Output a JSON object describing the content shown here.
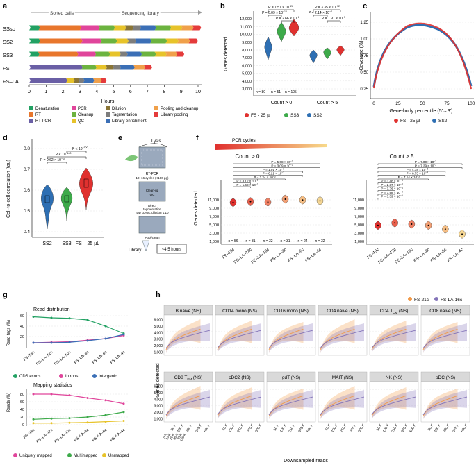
{
  "colors": {
    "denaturation": "#22a163",
    "rt": "#e8762c",
    "rtpcr": "#6a5fa5",
    "pcr": "#e0459b",
    "cleanup": "#6cb33f",
    "qc": "#e7c32a",
    "dilution": "#8a7536",
    "tagmentation": "#7d7d7d",
    "library_enrichment": "#3b6fb6",
    "pooling_cleanup": "#f0a04a",
    "library_pooling": "#e43b3b",
    "fs25": "#e0312f",
    "ss3": "#3daa4a",
    "ss2": "#2e6fb3",
    "fs21c": "#f29a48",
    "fslа16c": "#8474b9"
  },
  "panels": {
    "a": "a",
    "b": "b",
    "c": "c",
    "d": "d",
    "e": "e",
    "f": "f",
    "g": "g",
    "h": "h"
  },
  "panel_a": {
    "left_label": "Sorted cells",
    "right_label": "Sequencing library",
    "rows": [
      "SSsc",
      "SS2",
      "SS3",
      "FS",
      "FS–LA"
    ],
    "ticks": [
      "0",
      "1",
      "2",
      "3",
      "4",
      "5",
      "6",
      "7",
      "8",
      "9",
      "10"
    ],
    "xlabel": "Hours",
    "legend": [
      "Denaturation",
      "RT",
      "RT-PCR",
      "PCR",
      "Cleanup",
      "QC",
      "Dilution",
      "Tagmentation",
      "Library enrichment",
      "Pooling and cleanup",
      "Library pooling"
    ]
  },
  "panel_b": {
    "ylabel": "Genes detected",
    "yticks": [
      "3,000",
      "4,000",
      "5,000",
      "6,000",
      "7,000",
      "8,000",
      "9,000",
      "10,000",
      "11,000",
      "12,000"
    ],
    "groups": [
      "Count > 0",
      "Count > 5"
    ],
    "n_labels": [
      "n = 80",
      "n = 51",
      "n = 105"
    ],
    "pvals_left": [
      "P = 7.57 × 10",
      "P = 6.09 × 10",
      "P = 2.66 × 10"
    ],
    "pvals_right": [
      "P = 3.35 × 10",
      "P = 2.14 × 10",
      "P = 1.91 × 10"
    ],
    "legend": [
      "FS - 25 µl",
      "SS3",
      "SS2"
    ]
  },
  "panel_c": {
    "ylabel": "Coverage (%)",
    "yticks": [
      "0.25",
      "0.50",
      "0.75",
      "1.00",
      "1.25"
    ],
    "xticks": [
      "0",
      "25",
      "50",
      "75",
      "100"
    ],
    "xlabel": "Gene-body percentile (5′→3′)",
    "legend": [
      "FS - 25 µl",
      "SS2"
    ]
  },
  "panel_d": {
    "ylabel": "Cell-to-cell correlation (tau)",
    "yticks": [
      "0.4",
      "0.5",
      "0.6",
      "0.7",
      "0.8"
    ],
    "xticks": [
      "SS2",
      "SS3",
      "FS – 25 µL"
    ],
    "pvals": [
      "P < 10",
      "P < 10",
      "P = 9.62 × 10"
    ]
  },
  "panel_e": {
    "lysis": "Lysis",
    "rtpcr": "RT-PCR",
    "cycles": "10–16 cycles (<100 pg)",
    "cleanup1": "Clean-up",
    "cleanup2": "QC",
    "direct1": "Direct",
    "direct2": "tagmentation",
    "direct3": "raw cDNA, dilution 1:10",
    "pool": "Pool/clean",
    "library": "Library",
    "time": "~4.5 hours"
  },
  "panel_f": {
    "pcr_label": "PCR cycles",
    "left_title": "Count > 0",
    "right_title": "Count > 5",
    "ylabel": "Genes detected",
    "yticks": [
      "1,000",
      "3,000",
      "5,000",
      "7,000",
      "9,000",
      "11,000"
    ],
    "samples": [
      "FS–19c",
      "FS–LA–12c",
      "FS–LA–10c",
      "FS–LA–8c",
      "FS–LA–6c",
      "FS–LA–4c"
    ],
    "n_labels": [
      "n = 56",
      "n = 31",
      "n = 32",
      "n = 31",
      "n = 24",
      "n = 32"
    ],
    "pvals_left": [
      "P = 5.68 × 10",
      "P = 3.09 × 10",
      "P = 1.01 × 10",
      "P = 6.22 × 10",
      "P = 2.24 × 10",
      "P = 3.12 × 10",
      "P = 1.68 × 10"
    ],
    "pvals_right": [
      "P = 7.00 × 10",
      "P = 7.29 × 10",
      "P = 4.18 × 10",
      "P = 6.73 × 10",
      "P = 7.14 × 10",
      "P = 3.48 × 10",
      "P = 2.37 × 10",
      "P = 3.76 × 10",
      "P = 7.98 × 10",
      "P = 3.39 × 10"
    ]
  },
  "panel_g": {
    "title1": "Read distribution",
    "ylabel1": "Read tags (%)",
    "yticks1": [
      "20",
      "40",
      "60"
    ],
    "legend1": [
      "CDS exons",
      "Introns",
      "Intergenic"
    ],
    "title2": "Mapping statistics",
    "ylabel2": "Reads (%)",
    "yticks2": [
      "0",
      "20",
      "40",
      "60",
      "80"
    ],
    "samples": [
      "FS–19c",
      "FS–LA–12c",
      "FS–LA–10c",
      "FS–LA–8c",
      "FS–LA–6c",
      "FS–LA–4c"
    ],
    "legend2": [
      "Uniquely mapped",
      "Multimapped",
      "Unmapped"
    ]
  },
  "panel_h": {
    "legend": [
      "FS-21c",
      "FS-LA-16c"
    ],
    "ylabel": "Genes detected",
    "yticks": [
      "1,000",
      "2,000",
      "3,000",
      "4,000",
      "5,000",
      "6,000"
    ],
    "xlabel": "Downsampled reads",
    "xticks": [
      "50 K",
      "100 K",
      "250 K",
      "375 K",
      "500 K"
    ],
    "small_ticks": [
      "5 K",
      "10 K",
      "20 K",
      "30 K",
      "75 K",
      "125 K"
    ],
    "facets": [
      "B naive (NS)",
      "CD14 mono (NS)",
      "CD16 mono (NS)",
      "CD4 naive (NS)",
      "CD4 T",
      "CD8 naive (NS)",
      "CD8 T",
      "cDC2 (NS)",
      "gdT (NS)",
      "MAIT (NS)",
      "NK (NS)",
      "pDC (NS)"
    ],
    "facet_sub": {
      "4": "CM",
      "6": "EM"
    },
    "facet_suffix": " (NS)"
  }
}
